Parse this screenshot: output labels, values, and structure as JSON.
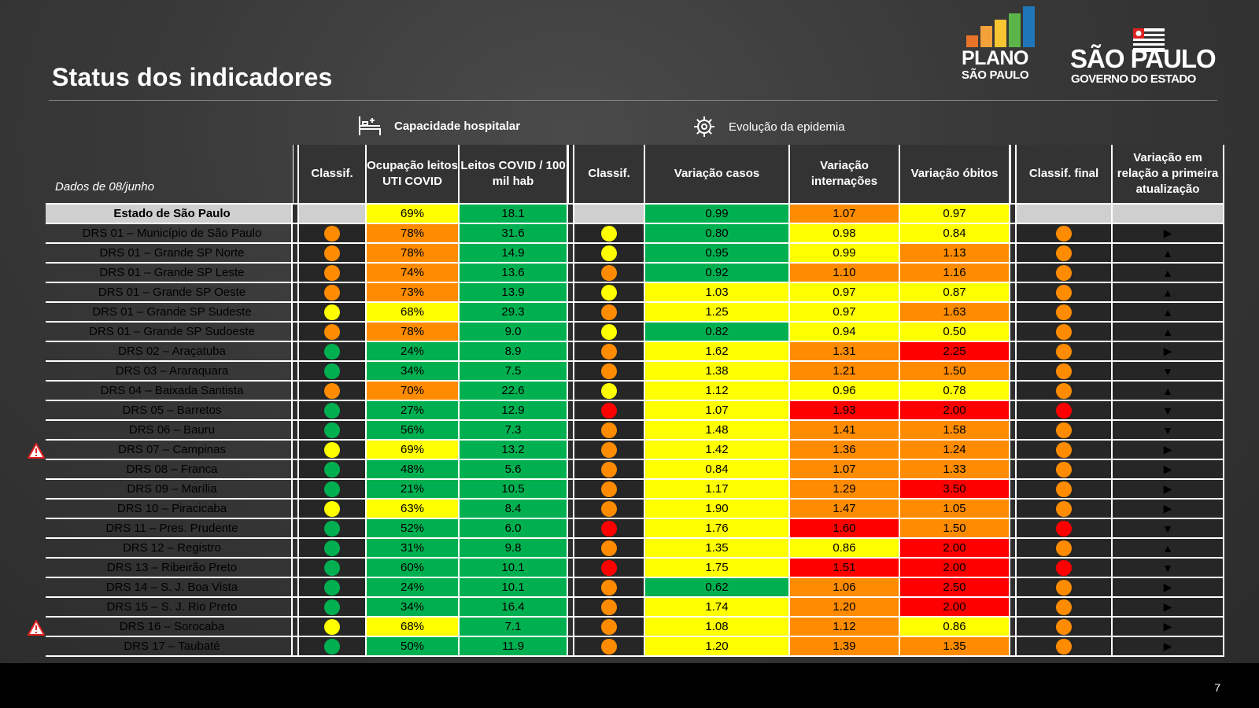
{
  "title": "Status dos indicadores",
  "page_number": "7",
  "logo_plano": {
    "line1": "PLANO",
    "line2": "SÃO PAULO"
  },
  "logo_sp": {
    "line1": "SÃO PAULO",
    "line2": "GOVERNO DO ESTADO"
  },
  "sections": {
    "hospital": "Capacidade hospitalar",
    "epidemic": "Evolução da epidemia"
  },
  "headers": {
    "date": "Dados de 08/junho",
    "classif1": "Classif.",
    "ocupacao": "Ocupação leitos UTI COVID",
    "leitos": "Leitos COVID / 100 mil hab",
    "classif2": "Classif.",
    "var_casos": "Variação casos",
    "var_intern": "Variação internações",
    "var_obitos": "Variação óbitos",
    "classif_final": "Classif. final",
    "variacao_primeira": "Variação em relação a primeira atualização"
  },
  "colors": {
    "green": "#00b050",
    "yellow": "#ffff00",
    "orange": "#ff8c00",
    "red": "#ff0000",
    "grey": "#cfcfcf"
  },
  "rows": [
    {
      "name": "Estado de São Paulo",
      "state": true,
      "c1": "",
      "ocup": "69%",
      "ocup_c": "yellow",
      "leitos": "18.1",
      "leitos_c": "green",
      "c2": "",
      "casos": "0.99",
      "casos_c": "green",
      "intern": "1.07",
      "intern_c": "orange",
      "obitos": "0.97",
      "obitos_c": "yellow",
      "cf": "",
      "trend": ""
    },
    {
      "name": "DRS 01 – Município de São Paulo",
      "c1": "orange",
      "ocup": "78%",
      "ocup_c": "orange",
      "leitos": "31.6",
      "leitos_c": "green",
      "c2": "yellow",
      "casos": "0.80",
      "casos_c": "green",
      "intern": "0.98",
      "intern_c": "yellow",
      "obitos": "0.84",
      "obitos_c": "yellow",
      "cf": "orange",
      "trend": "▶"
    },
    {
      "name": "DRS 01 – Grande SP Norte",
      "c1": "orange",
      "ocup": "78%",
      "ocup_c": "orange",
      "leitos": "14.9",
      "leitos_c": "green",
      "c2": "yellow",
      "casos": "0.95",
      "casos_c": "green",
      "intern": "0.99",
      "intern_c": "yellow",
      "obitos": "1.13",
      "obitos_c": "orange",
      "cf": "orange",
      "trend": "▲"
    },
    {
      "name": "DRS 01 – Grande SP Leste",
      "c1": "orange",
      "ocup": "74%",
      "ocup_c": "orange",
      "leitos": "13.6",
      "leitos_c": "green",
      "c2": "orange",
      "casos": "0.92",
      "casos_c": "green",
      "intern": "1.10",
      "intern_c": "orange",
      "obitos": "1.16",
      "obitos_c": "orange",
      "cf": "orange",
      "trend": "▲"
    },
    {
      "name": "DRS 01 – Grande SP Oeste",
      "c1": "orange",
      "ocup": "73%",
      "ocup_c": "orange",
      "leitos": "13.9",
      "leitos_c": "green",
      "c2": "yellow",
      "casos": "1.03",
      "casos_c": "yellow",
      "intern": "0.97",
      "intern_c": "yellow",
      "obitos": "0.87",
      "obitos_c": "yellow",
      "cf": "orange",
      "trend": "▲"
    },
    {
      "name": "DRS 01 – Grande SP Sudeste",
      "c1": "yellow",
      "ocup": "68%",
      "ocup_c": "yellow",
      "leitos": "29.3",
      "leitos_c": "green",
      "c2": "orange",
      "casos": "1.25",
      "casos_c": "yellow",
      "intern": "0.97",
      "intern_c": "yellow",
      "obitos": "1.63",
      "obitos_c": "orange",
      "cf": "orange",
      "trend": "▲"
    },
    {
      "name": "DRS 01 – Grande SP Sudoeste",
      "c1": "orange",
      "ocup": "78%",
      "ocup_c": "orange",
      "leitos": "9.0",
      "leitos_c": "green",
      "c2": "yellow",
      "casos": "0.82",
      "casos_c": "green",
      "intern": "0.94",
      "intern_c": "yellow",
      "obitos": "0.50",
      "obitos_c": "yellow",
      "cf": "orange",
      "trend": "▲"
    },
    {
      "name": "DRS 02 – Araçatuba",
      "c1": "green",
      "ocup": "24%",
      "ocup_c": "green",
      "leitos": "8.9",
      "leitos_c": "green",
      "c2": "orange",
      "casos": "1.62",
      "casos_c": "yellow",
      "intern": "1.31",
      "intern_c": "orange",
      "obitos": "2.25",
      "obitos_c": "red",
      "cf": "orange",
      "trend": "▶"
    },
    {
      "name": "DRS 03 – Araraquara",
      "c1": "green",
      "ocup": "34%",
      "ocup_c": "green",
      "leitos": "7.5",
      "leitos_c": "green",
      "c2": "orange",
      "casos": "1.38",
      "casos_c": "yellow",
      "intern": "1.21",
      "intern_c": "orange",
      "obitos": "1.50",
      "obitos_c": "orange",
      "cf": "orange",
      "trend": "▼"
    },
    {
      "name": "DRS 04 – Baixada Santista",
      "c1": "orange",
      "ocup": "70%",
      "ocup_c": "orange",
      "leitos": "22.6",
      "leitos_c": "green",
      "c2": "yellow",
      "casos": "1.12",
      "casos_c": "yellow",
      "intern": "0.96",
      "intern_c": "yellow",
      "obitos": "0.78",
      "obitos_c": "yellow",
      "cf": "orange",
      "trend": "▲"
    },
    {
      "name": "DRS 05 – Barretos",
      "c1": "green",
      "ocup": "27%",
      "ocup_c": "green",
      "leitos": "12.9",
      "leitos_c": "green",
      "c2": "red",
      "casos": "1.07",
      "casos_c": "yellow",
      "intern": "1.93",
      "intern_c": "red",
      "obitos": "2.00",
      "obitos_c": "red",
      "cf": "red",
      "trend": "▼"
    },
    {
      "name": "DRS 06 – Bauru",
      "c1": "green",
      "ocup": "56%",
      "ocup_c": "green",
      "leitos": "7.3",
      "leitos_c": "green",
      "c2": "orange",
      "casos": "1.48",
      "casos_c": "yellow",
      "intern": "1.41",
      "intern_c": "orange",
      "obitos": "1.58",
      "obitos_c": "orange",
      "cf": "orange",
      "trend": "▼"
    },
    {
      "name": "DRS 07 – Campinas",
      "warn": true,
      "c1": "yellow",
      "ocup": "69%",
      "ocup_c": "yellow",
      "leitos": "13.2",
      "leitos_c": "green",
      "c2": "orange",
      "casos": "1.42",
      "casos_c": "yellow",
      "intern": "1.36",
      "intern_c": "orange",
      "obitos": "1.24",
      "obitos_c": "orange",
      "cf": "orange",
      "trend": "▶"
    },
    {
      "name": "DRS 08 – Franca",
      "c1": "green",
      "ocup": "48%",
      "ocup_c": "green",
      "leitos": "5.6",
      "leitos_c": "green",
      "c2": "orange",
      "casos": "0.84",
      "casos_c": "yellow",
      "intern": "1.07",
      "intern_c": "orange",
      "obitos": "1.33",
      "obitos_c": "orange",
      "cf": "orange",
      "trend": "▶"
    },
    {
      "name": "DRS 09 – Marília",
      "c1": "green",
      "ocup": "21%",
      "ocup_c": "green",
      "leitos": "10.5",
      "leitos_c": "green",
      "c2": "orange",
      "casos": "1.17",
      "casos_c": "yellow",
      "intern": "1.29",
      "intern_c": "orange",
      "obitos": "3.50",
      "obitos_c": "red",
      "cf": "orange",
      "trend": "▶"
    },
    {
      "name": "DRS 10 – Piracicaba",
      "c1": "yellow",
      "ocup": "63%",
      "ocup_c": "yellow",
      "leitos": "8.4",
      "leitos_c": "green",
      "c2": "orange",
      "casos": "1.90",
      "casos_c": "yellow",
      "intern": "1.47",
      "intern_c": "orange",
      "obitos": "1.05",
      "obitos_c": "orange",
      "cf": "orange",
      "trend": "▶"
    },
    {
      "name": "DRS 11 – Pres. Prudente",
      "c1": "green",
      "ocup": "52%",
      "ocup_c": "green",
      "leitos": "6.0",
      "leitos_c": "green",
      "c2": "red",
      "casos": "1.76",
      "casos_c": "yellow",
      "intern": "1.60",
      "intern_c": "red",
      "obitos": "1.50",
      "obitos_c": "orange",
      "cf": "red",
      "trend": "▼"
    },
    {
      "name": "DRS 12 – Registro",
      "c1": "green",
      "ocup": "31%",
      "ocup_c": "green",
      "leitos": "9.8",
      "leitos_c": "green",
      "c2": "orange",
      "casos": "1.35",
      "casos_c": "yellow",
      "intern": "0.86",
      "intern_c": "yellow",
      "obitos": "2.00",
      "obitos_c": "red",
      "cf": "orange",
      "trend": "▲"
    },
    {
      "name": "DRS 13 – Ribeirão Preto",
      "c1": "green",
      "ocup": "60%",
      "ocup_c": "green",
      "leitos": "10.1",
      "leitos_c": "green",
      "c2": "red",
      "casos": "1.75",
      "casos_c": "yellow",
      "intern": "1.51",
      "intern_c": "red",
      "obitos": "2.00",
      "obitos_c": "red",
      "cf": "red",
      "trend": "▼"
    },
    {
      "name": "DRS 14 – S. J. Boa Vista",
      "c1": "green",
      "ocup": "24%",
      "ocup_c": "green",
      "leitos": "10.1",
      "leitos_c": "green",
      "c2": "orange",
      "casos": "0.62",
      "casos_c": "green",
      "intern": "1.06",
      "intern_c": "orange",
      "obitos": "2.50",
      "obitos_c": "red",
      "cf": "orange",
      "trend": "▶"
    },
    {
      "name": "DRS 15 – S. J. Rio Preto",
      "c1": "green",
      "ocup": "34%",
      "ocup_c": "green",
      "leitos": "16.4",
      "leitos_c": "green",
      "c2": "orange",
      "casos": "1.74",
      "casos_c": "yellow",
      "intern": "1.20",
      "intern_c": "orange",
      "obitos": "2.00",
      "obitos_c": "red",
      "cf": "orange",
      "trend": "▶"
    },
    {
      "name": "DRS 16 – Sorocaba",
      "warn": true,
      "c1": "yellow",
      "ocup": "68%",
      "ocup_c": "yellow",
      "leitos": "7.1",
      "leitos_c": "green",
      "c2": "orange",
      "casos": "1.08",
      "casos_c": "yellow",
      "intern": "1.12",
      "intern_c": "orange",
      "obitos": "0.86",
      "obitos_c": "yellow",
      "cf": "orange",
      "trend": "▶"
    },
    {
      "name": "DRS 17 – Taubaté",
      "c1": "green",
      "ocup": "50%",
      "ocup_c": "green",
      "leitos": "11.9",
      "leitos_c": "green",
      "c2": "orange",
      "casos": "1.20",
      "casos_c": "yellow",
      "intern": "1.39",
      "intern_c": "orange",
      "obitos": "1.35",
      "obitos_c": "orange",
      "cf": "orange",
      "trend": "▶"
    }
  ]
}
